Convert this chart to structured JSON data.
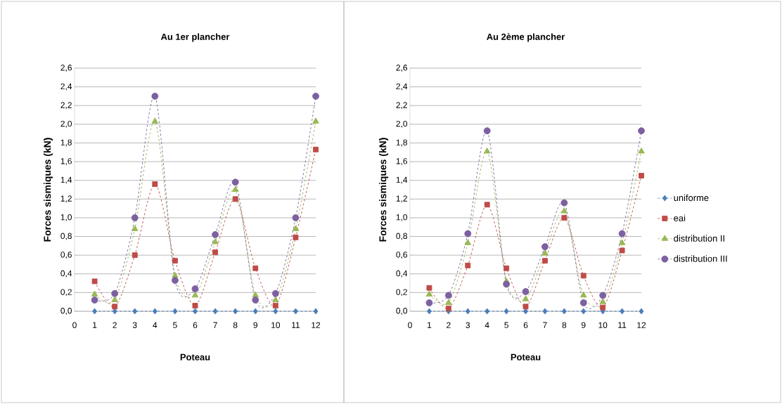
{
  "chart_data": [
    {
      "type": "line",
      "title": "Au 1er plancher",
      "xlabel": "Poteau",
      "ylabel": "Forces sismiques (kN)",
      "x": [
        1,
        2,
        3,
        4,
        5,
        6,
        7,
        8,
        9,
        10,
        11,
        12
      ],
      "series": [
        {
          "color": "#4a7ebb",
          "marker": "diamond",
          "values": [
            0,
            0,
            0,
            0,
            0,
            0,
            0,
            0,
            0,
            0,
            0,
            0
          ]
        },
        {
          "color": "#be4b48",
          "marker": "square",
          "values": [
            0.32,
            0.05,
            0.6,
            1.36,
            0.54,
            0.06,
            0.63,
            1.2,
            0.46,
            0.06,
            0.79,
            1.73
          ]
        },
        {
          "color": "#98b954",
          "marker": "triangle",
          "values": [
            0.18,
            0.12,
            0.88,
            2.03,
            0.38,
            0.17,
            0.74,
            1.3,
            0.17,
            0.12,
            0.88,
            2.03
          ]
        },
        {
          "color": "#7d60a0",
          "marker": "circle",
          "values": [
            0.12,
            0.19,
            1.0,
            2.3,
            0.33,
            0.24,
            0.82,
            1.38,
            0.12,
            0.19,
            1.0,
            2.3
          ]
        }
      ],
      "xlim": [
        0,
        12
      ],
      "xticks": [
        0,
        1,
        2,
        3,
        4,
        5,
        6,
        7,
        8,
        9,
        10,
        11,
        12
      ],
      "ylim": [
        0,
        2.6
      ],
      "yticks": [
        {
          "value": 0,
          "label": "0,0"
        },
        {
          "value": 0.2,
          "label": "0,2"
        },
        {
          "value": 0.4,
          "label": "0,4"
        },
        {
          "value": 0.6,
          "label": "0,6"
        },
        {
          "value": 0.8,
          "label": "0,8"
        },
        {
          "value": 1.0,
          "label": "1,0"
        },
        {
          "value": 1.2,
          "label": "1,2"
        },
        {
          "value": 1.4,
          "label": "1,4"
        },
        {
          "value": 1.6,
          "label": "1,6"
        },
        {
          "value": 1.8,
          "label": "1,8"
        },
        {
          "value": 2.0,
          "label": "2,0"
        },
        {
          "value": 2.2,
          "label": "2,2"
        },
        {
          "value": 2.4,
          "label": "2,4"
        },
        {
          "value": 2.6,
          "label": "2,6"
        }
      ],
      "grid": "y",
      "line_style": "dashed",
      "legend": false
    },
    {
      "type": "line",
      "title": "Au 2ème plancher",
      "xlabel": "Poteau",
      "ylabel": "Forces sismiques (kN)",
      "x": [
        1,
        2,
        3,
        4,
        5,
        6,
        7,
        8,
        9,
        10,
        11,
        12
      ],
      "series": [
        {
          "name": "uniforme",
          "color": "#4a7ebb",
          "marker": "diamond",
          "values": [
            0,
            0,
            0,
            0,
            0,
            0,
            0,
            0,
            0,
            0,
            0,
            0
          ]
        },
        {
          "name": "eai",
          "color": "#be4b48",
          "marker": "square",
          "values": [
            0.25,
            0.03,
            0.49,
            1.14,
            0.46,
            0.05,
            0.54,
            1.0,
            0.38,
            0.04,
            0.65,
            1.45
          ]
        },
        {
          "name": "distribution II",
          "color": "#98b954",
          "marker": "triangle",
          "values": [
            0.18,
            0.09,
            0.73,
            1.71,
            0.32,
            0.13,
            0.62,
            1.07,
            0.17,
            0.1,
            0.73,
            1.71
          ]
        },
        {
          "name": "distribution III",
          "color": "#7d60a0",
          "marker": "circle",
          "values": [
            0.09,
            0.17,
            0.83,
            1.93,
            0.29,
            0.21,
            0.69,
            1.16,
            0.09,
            0.17,
            0.83,
            1.93
          ]
        }
      ],
      "xlim": [
        0,
        12
      ],
      "xticks": [
        0,
        1,
        2,
        3,
        4,
        5,
        6,
        7,
        8,
        9,
        10,
        11,
        12
      ],
      "ylim": [
        0,
        2.6
      ],
      "yticks": [
        {
          "value": 0,
          "label": "0,0"
        },
        {
          "value": 0.2,
          "label": "0,2"
        },
        {
          "value": 0.4,
          "label": "0,4"
        },
        {
          "value": 0.6,
          "label": "0,6"
        },
        {
          "value": 0.8,
          "label": "0,8"
        },
        {
          "value": 1.0,
          "label": "1,0"
        },
        {
          "value": 1.2,
          "label": "1,2"
        },
        {
          "value": 1.4,
          "label": "1,4"
        },
        {
          "value": 1.6,
          "label": "1,6"
        },
        {
          "value": 1.8,
          "label": "1,8"
        },
        {
          "value": 2.0,
          "label": "2,0"
        },
        {
          "value": 2.2,
          "label": "2,2"
        },
        {
          "value": 2.4,
          "label": "2,4"
        },
        {
          "value": 2.6,
          "label": "2,6"
        }
      ],
      "grid": "y",
      "line_style": "dashed",
      "legend": "right"
    }
  ]
}
